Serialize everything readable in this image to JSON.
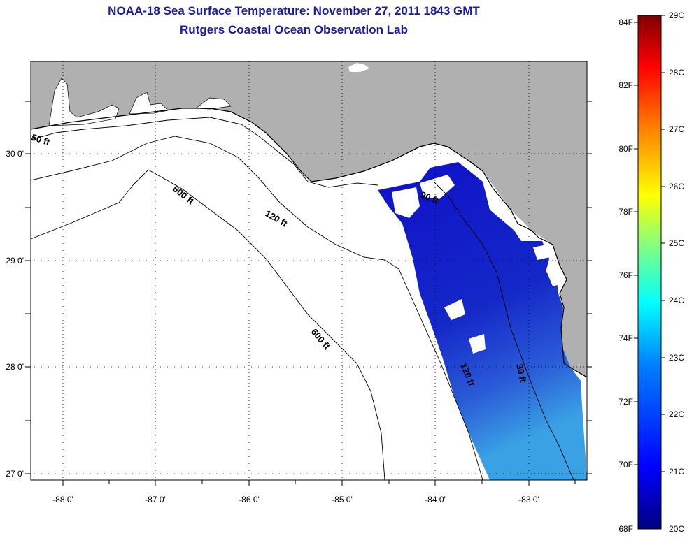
{
  "title": "NOAA-18 Sea Surface Temperature:  November 27, 2011 1843 GMT",
  "subtitle": "Rutgers Coastal Ocean Observation Lab",
  "map": {
    "lon_ticks": [
      "-88 0'",
      "-87 0'",
      "-86 0'",
      "-85 0'",
      "-84 0'",
      "-83 0'"
    ],
    "lat_ticks": [
      "30 0'",
      "29 0'",
      "28 0'",
      "27 0'"
    ],
    "contour_labels": [
      "50 ft",
      "600 ft",
      "120 ft",
      "90 ft",
      "600 ft",
      "120 ft",
      "30 ft"
    ],
    "colors": {
      "land": "#b0b0b0",
      "ocean": "#ffffff",
      "coast": "#000000"
    }
  },
  "colorbar": {
    "fahrenheit_labels": [
      "84F",
      "82F",
      "80F",
      "78F",
      "76F",
      "74F",
      "72F",
      "70F",
      "68F"
    ],
    "celsius_labels": [
      "29C",
      "28C",
      "27C",
      "26C",
      "25C",
      "24C",
      "23C",
      "22C",
      "21C",
      "20C"
    ],
    "gradient": [
      "#00007f",
      "#0000ff",
      "#0080ff",
      "#00ffff",
      "#80ff80",
      "#ffff00",
      "#ff8000",
      "#ff0000",
      "#7f0000"
    ]
  }
}
